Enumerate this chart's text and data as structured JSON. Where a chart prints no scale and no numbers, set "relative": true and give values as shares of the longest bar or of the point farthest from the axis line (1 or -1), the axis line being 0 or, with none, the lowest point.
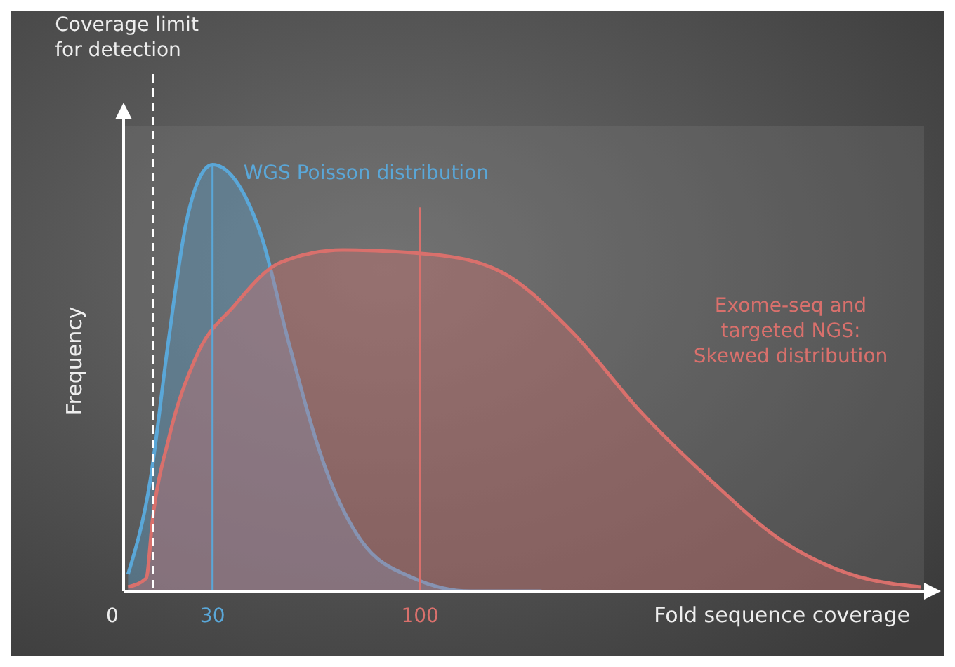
{
  "chart_data": {
    "type": "area",
    "relative": true,
    "xlabel": "Fold sequence coverage",
    "ylabel": "Frequency",
    "xlim": [
      0,
      270
    ],
    "xticks": [
      0,
      30,
      100
    ],
    "grid": false,
    "series": [
      {
        "name": "WGS Poisson distribution",
        "color": "#5aa7d8",
        "x": [
          1.5,
          9,
          15,
          21,
          27.5,
          30,
          37,
          46.6,
          55.8,
          68,
          80,
          98,
          117,
          141
        ],
        "values": [
          0.04,
          0.26,
          0.58,
          0.86,
          0.99,
          1,
          0.97,
          0.83,
          0.58,
          0.29,
          0.12,
          0.03,
          0,
          0
        ]
      },
      {
        "name": "Exome-seq and targeted NGS: Skewed distribution",
        "color": "#d9706c",
        "x": [
          1.5,
          7.6,
          9.8,
          15.3,
          24.5,
          37.4,
          52.7,
          74,
          103.8,
          127,
          151,
          174.5,
          198,
          221.7,
          245,
          269
        ],
        "values": [
          0.01,
          0.03,
          0.17,
          0.36,
          0.55,
          0.67,
          0.77,
          0.8,
          0.79,
          0.75,
          0.61,
          0.42,
          0.26,
          0.12,
          0.04,
          0.01
        ]
      }
    ],
    "ref_lines": [
      {
        "axis": "x",
        "value": 10,
        "label": "Coverage limit for detection",
        "color": "#ffffff",
        "line_style": "dashed"
      },
      {
        "axis": "x",
        "value": 30,
        "label": null,
        "color": "#5aa7d8",
        "line_style": "solid"
      },
      {
        "axis": "x",
        "value": 100,
        "label": null,
        "color": "#d9706c",
        "line_style": "solid"
      }
    ]
  }
}
